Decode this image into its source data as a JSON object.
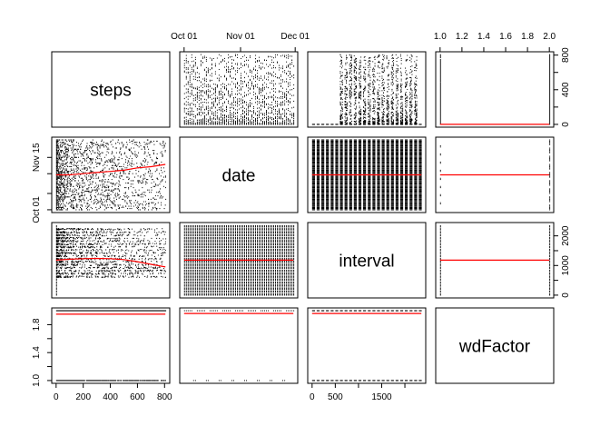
{
  "chart_data": {
    "type": "scatter-matrix",
    "variables": [
      "steps",
      "date",
      "interval",
      "wdFactor"
    ],
    "ranges": {
      "steps": [
        0,
        806
      ],
      "date": [
        "2012-10-01",
        "2012-11-30"
      ],
      "interval": [
        0,
        2355
      ],
      "wdFactor": [
        1,
        2
      ]
    },
    "axes": {
      "top": [
        {
          "column": "date",
          "ticks": [
            {
              "v": "2012-10-01",
              "label": "Oct 01"
            },
            {
              "v": "2012-11-01",
              "label": "Nov 01"
            },
            {
              "v": "2012-12-01",
              "label": "Dec 01"
            }
          ]
        },
        {
          "column": "wdFactor",
          "ticks": [
            {
              "v": 1.0,
              "label": "1.0"
            },
            {
              "v": 1.2,
              "label": "1.2"
            },
            {
              "v": 1.4,
              "label": "1.4"
            },
            {
              "v": 1.6,
              "label": "1.6"
            },
            {
              "v": 1.8,
              "label": "1.8"
            },
            {
              "v": 2.0,
              "label": "2.0"
            }
          ]
        }
      ],
      "bottom": [
        {
          "column": "steps",
          "ticks": [
            {
              "v": 0,
              "label": "0"
            },
            {
              "v": 200,
              "label": "200"
            },
            {
              "v": 400,
              "label": "400"
            },
            {
              "v": 600,
              "label": "600"
            },
            {
              "v": 800,
              "label": "800"
            }
          ]
        },
        {
          "column": "interval",
          "ticks": [
            {
              "v": 0,
              "label": "0"
            },
            {
              "v": 500,
              "label": "500"
            },
            {
              "v": 1000,
              "label": ""
            },
            {
              "v": 1500,
              "label": "1500"
            },
            {
              "v": 2000,
              "label": ""
            }
          ]
        }
      ],
      "left": [
        {
          "row": "date",
          "ticks": [
            {
              "v": "2012-10-01",
              "label": "Oct 01"
            },
            {
              "v": "2012-10-15",
              "label": ""
            },
            {
              "v": "2012-11-01",
              "label": ""
            },
            {
              "v": "2012-11-15",
              "label": "Nov 15"
            }
          ]
        },
        {
          "row": "wdFactor",
          "ticks": [
            {
              "v": 1.0,
              "label": "1.0"
            },
            {
              "v": 1.2,
              "label": ""
            },
            {
              "v": 1.4,
              "label": "1.4"
            },
            {
              "v": 1.6,
              "label": ""
            },
            {
              "v": 1.8,
              "label": "1.8"
            }
          ]
        }
      ],
      "right": [
        {
          "row": "steps",
          "ticks": [
            {
              "v": 0,
              "label": "0"
            },
            {
              "v": 200,
              "label": ""
            },
            {
              "v": 400,
              "label": "400"
            },
            {
              "v": 600,
              "label": ""
            },
            {
              "v": 800,
              "label": "800"
            }
          ]
        },
        {
          "row": "interval",
          "ticks": [
            {
              "v": 0,
              "label": "0"
            },
            {
              "v": 500,
              "label": ""
            },
            {
              "v": 1000,
              "label": "1000"
            },
            {
              "v": 1500,
              "label": ""
            },
            {
              "v": 2000,
              "label": "2000"
            }
          ]
        }
      ]
    },
    "smooth_lines": {
      "color": "#ff0000",
      "steps_vs_date": [
        [
          0,
          "2012-10-31"
        ],
        [
          100,
          "2012-10-31"
        ],
        [
          200,
          "2012-11-01"
        ],
        [
          300,
          "2012-11-02"
        ],
        [
          400,
          "2012-11-03"
        ],
        [
          500,
          "2012-11-04"
        ],
        [
          600,
          "2012-11-06"
        ],
        [
          700,
          "2012-11-07"
        ],
        [
          806,
          "2012-11-09"
        ]
      ],
      "steps_vs_interval": [
        [
          0,
          1180
        ],
        [
          100,
          1210
        ],
        [
          200,
          1230
        ],
        [
          300,
          1240
        ],
        [
          400,
          1230
        ],
        [
          500,
          1200
        ],
        [
          600,
          1130
        ],
        [
          700,
          1040
        ],
        [
          806,
          950
        ]
      ],
      "interval_vs_date": "2012-10-31",
      "wdFactor_vs_date": "2012-10-31",
      "date_vs_interval": 1180,
      "wdFactor_vs_interval": 1180,
      "steps_vs_wdFactor": 1.95,
      "date_vs_wdFactor": 1.96,
      "interval_vs_wdFactor": 1.96
    },
    "grid": false,
    "point_color": "#000000"
  }
}
